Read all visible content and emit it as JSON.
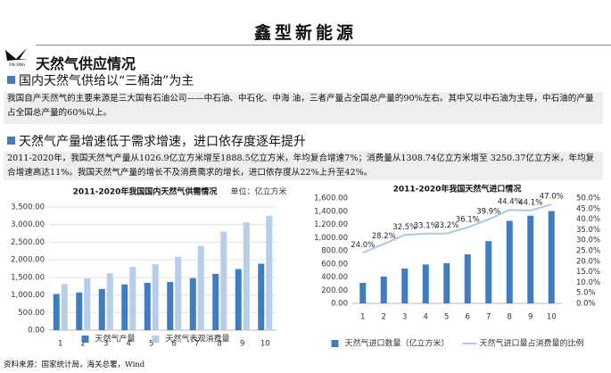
{
  "header": {
    "title": "鑫型新能源",
    "logo_text": "XIN XING"
  },
  "page_title": "天然气供应情况",
  "sections": [
    {
      "heading": "国内天然气供给以“三桶油”为主",
      "text": "我国自产天然气的主要来源是三大国有石油公司——中石油、中石化、中海 油，三者产量占全国总产量的90%左右。其中又以中石油为主导，中石油的产量占全国总产量的60%以上。"
    },
    {
      "heading": "天然气产量增速低于需求增速，进口依存度逐年提升",
      "text": "2011-2020年，我国天然气产量从1026.9亿立方米增至1888.5亿立方米，年均复合增速7%；消费量从1308.74亿立方米增至 3250.37亿立方米，年均复合增速高达11%。我国天然气产量的增长不及消费需求的增长，进口依存度从22%上升至42%。"
    }
  ],
  "source": "资料来源：国家统计局，海关总署，Wind",
  "chart_data": [
    {
      "type": "bar",
      "title": "2011-2020年我国国内天然气供需情况",
      "unit": "单位：亿立方米",
      "categories": [
        "1",
        "2",
        "3",
        "4",
        "5",
        "6",
        "7",
        "8",
        "9",
        "10"
      ],
      "series": [
        {
          "name": "天然气产量",
          "color": "#3f7cc4",
          "values": [
            1026.9,
            1072,
            1171,
            1301,
            1346,
            1369,
            1480,
            1602,
            1736,
            1888.5
          ]
        },
        {
          "name": "天然气表观消费量",
          "color": "#b8cde9",
          "values": [
            1308.74,
            1471,
            1616,
            1800,
            1870,
            2086,
            2394,
            2803,
            3064,
            3250.37
          ]
        }
      ],
      "ylim": [
        0,
        3500
      ],
      "yticks": [
        {
          "value": 0,
          "label": "0.00"
        },
        {
          "value": 500,
          "label": "500.00"
        },
        {
          "value": 1000,
          "label": "1,000.00"
        },
        {
          "value": 1500,
          "label": "1,500.00"
        },
        {
          "value": 2000,
          "label": "2,000.00"
        },
        {
          "value": 2500,
          "label": "2,500.00"
        },
        {
          "value": 3000,
          "label": "3,000.00"
        },
        {
          "value": 3500,
          "label": "3,500.00"
        }
      ],
      "grid": true
    },
    {
      "type": "bar",
      "title": "2011-2020年我国天然气进口情况",
      "categories": [
        "1",
        "2",
        "3",
        "4",
        "5",
        "6",
        "7",
        "8",
        "9",
        "10"
      ],
      "series": [
        {
          "name": "天然气进口数量（亿立方米）",
          "color": "#3f7cc4",
          "values": [
            312,
            408,
            530,
            591,
            611,
            745,
            946,
            1254,
            1332,
            1403
          ]
        },
        {
          "name": "天然气进口量占消费量的比例",
          "color": "#a9c8ea",
          "type": "line",
          "axis": "y2",
          "values": [
            24.0,
            28.2,
            32.5,
            33.1,
            33.2,
            36.1,
            39.9,
            44.4,
            44.1,
            47.0
          ],
          "value_labels": [
            "24.0%",
            "28.2%",
            "32.5%",
            "33.1%",
            "33.2%",
            "36.1%",
            "39.9%",
            "44.4%",
            "44.1%",
            "47.0%"
          ]
        }
      ],
      "ylim": [
        0,
        1600
      ],
      "yticks": [
        {
          "value": 0,
          "label": "0.00"
        },
        {
          "value": 200,
          "label": "200.00"
        },
        {
          "value": 400,
          "label": "400.00"
        },
        {
          "value": 600,
          "label": "600.00"
        },
        {
          "value": 800,
          "label": "800.00"
        },
        {
          "value": 1000,
          "label": "1,000.00"
        },
        {
          "value": 1200,
          "label": "1,200.00"
        },
        {
          "value": 1400,
          "label": "1,400.00"
        },
        {
          "value": 1600,
          "label": "1,600.00"
        }
      ],
      "y2lim": [
        0,
        50
      ],
      "y2ticks": [
        {
          "value": 0,
          "label": "0.0%"
        },
        {
          "value": 5,
          "label": "5.0%"
        },
        {
          "value": 10,
          "label": "10.0%"
        },
        {
          "value": 15,
          "label": "15.0%"
        },
        {
          "value": 20,
          "label": "20.0%"
        },
        {
          "value": 25,
          "label": "25.0%"
        },
        {
          "value": 30,
          "label": "30.0%"
        },
        {
          "value": 35,
          "label": "35.0%"
        },
        {
          "value": 40,
          "label": "40.0%"
        },
        {
          "value": 45,
          "label": "45.0%"
        },
        {
          "value": 50,
          "label": "50.0%"
        }
      ],
      "grid": false
    }
  ]
}
